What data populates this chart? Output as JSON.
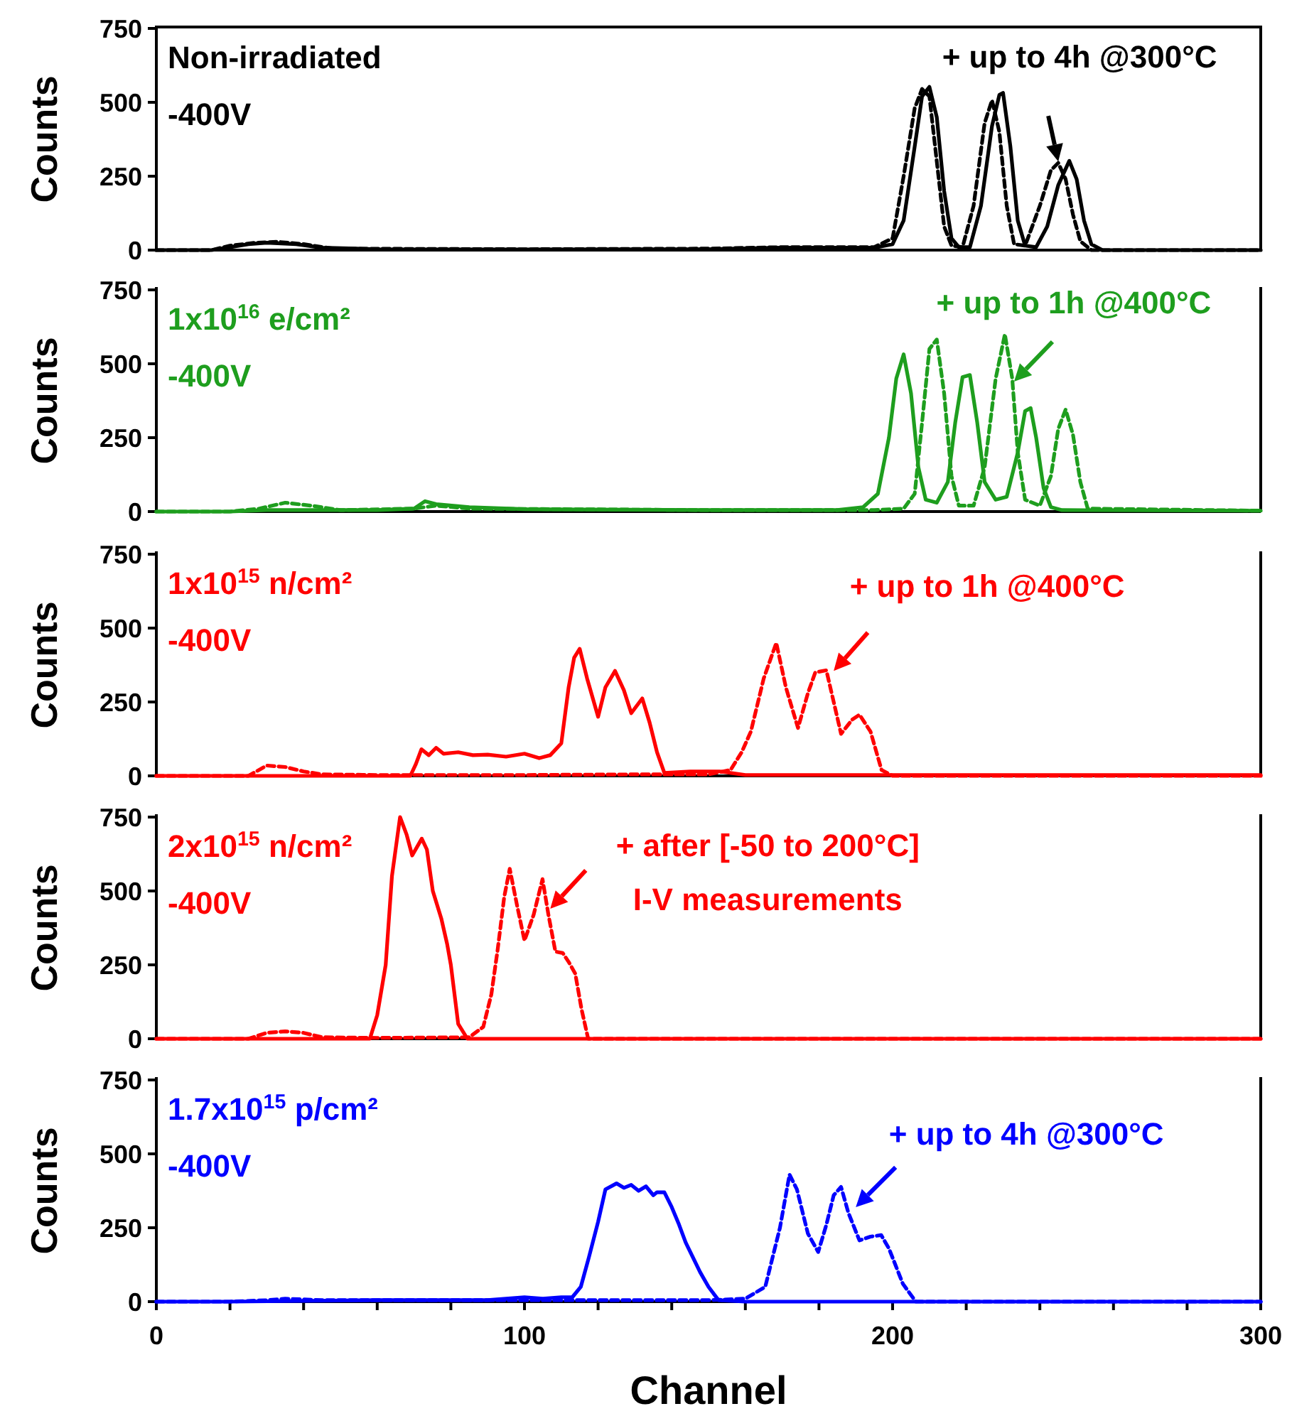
{
  "chart_data": [
    {
      "type": "line",
      "xlim": [
        0,
        300
      ],
      "ylim": [
        0,
        750
      ],
      "yticks": [
        0,
        250,
        500,
        750
      ],
      "ylabel": "Counts",
      "tick_labels": "y",
      "annotations": [
        "Non-irradiated",
        "-400V",
        {
          "text": "+ up to 4h @300°C",
          "x": 245,
          "y": 300
        }
      ],
      "series": [
        {
          "color": "#000000",
          "line_style": "solid",
          "x": [
            0,
            15,
            20,
            25,
            30,
            38,
            45,
            60,
            100,
            150,
            170,
            195,
            200,
            203,
            206,
            208,
            210,
            212,
            214,
            216,
            218,
            221,
            224,
            227,
            229,
            230,
            232,
            234,
            236,
            239,
            242,
            245,
            248,
            250,
            252,
            254,
            257,
            300
          ],
          "values": [
            0,
            0,
            10,
            20,
            25,
            20,
            8,
            3,
            2,
            3,
            8,
            8,
            20,
            100,
            350,
            520,
            552,
            450,
            200,
            40,
            10,
            10,
            150,
            420,
            525,
            532,
            350,
            100,
            15,
            10,
            80,
            220,
            302,
            240,
            100,
            20,
            0,
            0
          ]
        },
        {
          "color": "#000000",
          "line_style": "dashed",
          "x": [
            0,
            15,
            20,
            27,
            33,
            40,
            48,
            100,
            150,
            170,
            195,
            200,
            203,
            206,
            208,
            210,
            212,
            214,
            216,
            219,
            222,
            225,
            227,
            229,
            231,
            233,
            236,
            240,
            243,
            245,
            247,
            249,
            251,
            254,
            300
          ],
          "values": [
            0,
            0,
            15,
            25,
            28,
            20,
            5,
            3,
            5,
            10,
            10,
            40,
            250,
            480,
            545,
            520,
            300,
            80,
            15,
            10,
            150,
            430,
            507,
            400,
            150,
            20,
            15,
            150,
            270,
            295,
            240,
            120,
            30,
            0,
            0
          ]
        }
      ]
    },
    {
      "type": "line",
      "xlim": [
        0,
        300
      ],
      "ylim": [
        0,
        750
      ],
      "yticks": [
        0,
        250,
        500,
        750
      ],
      "ylabel": "Counts",
      "tick_labels": "y",
      "annotations": [
        "1x10$^{16}$ e/cm²",
        "-400V",
        {
          "text": "+ up to 1h @400°C",
          "x": 233,
          "y": 440
        }
      ],
      "series": [
        {
          "color": "#1e9e1e",
          "line_style": "solid",
          "x": [
            0,
            20,
            30,
            60,
            70,
            73,
            76,
            85,
            100,
            150,
            185,
            192,
            196,
            199,
            201,
            203,
            205,
            207,
            209,
            212,
            215,
            217,
            219,
            221,
            223,
            225,
            228,
            231,
            234,
            236,
            237.5,
            239,
            241,
            243,
            246,
            300
          ],
          "values": [
            0,
            0,
            5,
            5,
            10,
            35,
            25,
            15,
            8,
            5,
            5,
            15,
            60,
            250,
            450,
            532,
            400,
            150,
            40,
            30,
            100,
            300,
            455,
            462,
            300,
            100,
            40,
            50,
            200,
            340,
            350,
            250,
            80,
            15,
            5,
            3
          ]
        },
        {
          "color": "#1e9e1e",
          "line_style": "dashed",
          "x": [
            0,
            20,
            28,
            35,
            42,
            50,
            70,
            76,
            85,
            150,
            195,
            203,
            206,
            208,
            210,
            212,
            214,
            216,
            218,
            222,
            225,
            228,
            230.5,
            232.5,
            234,
            236,
            240,
            243,
            245,
            247,
            249,
            251,
            253,
            300
          ],
          "values": [
            0,
            0,
            10,
            30,
            20,
            5,
            10,
            20,
            10,
            5,
            5,
            10,
            60,
            300,
            550,
            582,
            400,
            120,
            20,
            20,
            150,
            450,
            600,
            450,
            200,
            40,
            20,
            120,
            280,
            345,
            260,
            100,
            10,
            3
          ]
        }
      ]
    },
    {
      "type": "line",
      "xlim": [
        0,
        300
      ],
      "ylim": [
        0,
        750
      ],
      "yticks": [
        0,
        250,
        500,
        750
      ],
      "ylabel": "Counts",
      "tick_labels": "y",
      "annotations": [
        "1x10$^{15}$ n/cm²",
        "-400V",
        {
          "text": "+ up to 1h @400°C",
          "x": 184,
          "y": 355
        }
      ],
      "series": [
        {
          "color": "#ff0000",
          "line_style": "solid",
          "x": [
            0,
            69,
            70.5,
            72,
            74,
            76,
            78,
            82,
            86,
            90,
            95,
            100,
            104,
            107,
            110,
            112,
            113.5,
            115,
            117,
            120,
            122,
            124.6,
            127,
            129,
            132,
            134,
            136,
            138,
            145,
            153,
            160,
            300
          ],
          "values": [
            0,
            0,
            40,
            90,
            70,
            95,
            75,
            80,
            70,
            72,
            65,
            75,
            60,
            70,
            110,
            300,
            400,
            430,
            330,
            200,
            300,
            355,
            290,
            212,
            262,
            180,
            80,
            10,
            15,
            15,
            3,
            3
          ]
        },
        {
          "color": "#ff0000",
          "line_style": "dashed",
          "x": [
            0,
            25,
            30,
            35,
            40,
            45,
            60,
            100,
            130,
            150,
            156,
            159,
            161.5,
            165,
            168.4,
            171,
            174.3,
            177,
            179,
            182,
            184,
            186,
            189,
            191,
            194,
            197,
            200,
            300
          ],
          "values": [
            0,
            0,
            35,
            30,
            15,
            5,
            3,
            3,
            5,
            5,
            20,
            80,
            150,
            330,
            450,
            300,
            162,
            280,
            350,
            357,
            250,
            142,
            190,
            207,
            150,
            20,
            0,
            0
          ]
        }
      ]
    },
    {
      "type": "line",
      "xlim": [
        0,
        300
      ],
      "ylim": [
        0,
        750
      ],
      "yticks": [
        0,
        250,
        500,
        750
      ],
      "ylabel": "Counts",
      "tick_labels": "y",
      "annotations": [
        "2x10$^{15}$ n/cm²",
        "-400V",
        {
          "text": "+ after [-50 to 200°C]\nI-V measurements",
          "x": 107,
          "y": 440
        }
      ],
      "series": [
        {
          "color": "#ff0000",
          "line_style": "solid",
          "x": [
            0,
            58,
            60,
            62.3,
            64,
            66.2,
            68,
            69.5,
            72.1,
            73.5,
            75.1,
            77.4,
            79,
            80,
            82,
            84.5,
            300
          ],
          "values": [
            0,
            0,
            80,
            250,
            550,
            750,
            690,
            620,
            677,
            640,
            500,
            407,
            320,
            250,
            50,
            0,
            0
          ]
        },
        {
          "color": "#ff0000",
          "line_style": "dashed",
          "x": [
            0,
            25,
            30,
            35,
            40,
            45,
            60,
            85,
            88.8,
            91,
            92.7,
            94.5,
            96,
            98,
            100,
            102.5,
            104.9,
            106.5,
            108.4,
            110.4,
            112,
            113.8,
            115.5,
            117.3,
            300
          ],
          "values": [
            0,
            0,
            20,
            25,
            20,
            5,
            3,
            5,
            40,
            150,
            300,
            480,
            575,
            450,
            332,
            420,
            540,
            420,
            295,
            290,
            260,
            220,
            100,
            0,
            0
          ]
        }
      ]
    },
    {
      "type": "line",
      "xlim": [
        0,
        300
      ],
      "ylim": [
        0,
        750
      ],
      "yticks": [
        0,
        250,
        500,
        750
      ],
      "ylabel": "Counts",
      "xlabel": "Channel",
      "xticks": [
        0,
        {
          "value": 20,
          "label": null
        },
        {
          "value": 40,
          "label": null
        },
        {
          "value": 60,
          "label": null
        },
        {
          "value": 80,
          "label": null
        },
        100,
        {
          "value": 120,
          "label": null
        },
        {
          "value": 140,
          "label": null
        },
        {
          "value": 160,
          "label": null
        },
        {
          "value": 180,
          "label": null
        },
        200,
        {
          "value": 220,
          "label": null
        },
        {
          "value": 240,
          "label": null
        },
        {
          "value": 260,
          "label": null
        },
        {
          "value": 280,
          "label": null
        },
        300
      ],
      "annotations": [
        "1.7x10$^{15}$ p/cm²",
        "-400V",
        {
          "text": "+ up to 4h @300°C",
          "x": 190,
          "y": 320
        }
      ],
      "series": [
        {
          "color": "#0000ff",
          "line_style": "solid",
          "x": [
            0,
            20,
            60,
            90,
            100,
            105,
            110,
            113,
            115.3,
            117.5,
            120,
            122,
            125,
            127,
            129,
            131,
            133,
            135,
            136,
            138,
            140,
            142,
            143.8,
            147.7,
            150,
            152.7,
            160,
            300
          ],
          "values": [
            0,
            0,
            5,
            5,
            15,
            10,
            15,
            15,
            50,
            150,
            270,
            380,
            400,
            385,
            395,
            375,
            390,
            360,
            370,
            370,
            320,
            260,
            200,
            100,
            50,
            5,
            0,
            0
          ]
        },
        {
          "color": "#0000ff",
          "line_style": "dashed",
          "x": [
            0,
            20,
            30,
            35,
            45,
            60,
            100,
            130,
            150,
            160,
            165.4,
            169.4,
            172,
            174,
            177,
            179.8,
            182,
            184,
            186,
            188,
            191,
            194,
            196.9,
            199,
            202.8,
            206.3,
            300
          ],
          "values": [
            0,
            0,
            5,
            10,
            5,
            5,
            5,
            5,
            5,
            10,
            50,
            250,
            430,
            380,
            230,
            168,
            260,
            360,
            388,
            300,
            207,
            220,
            225,
            180,
            60,
            0,
            0
          ]
        }
      ]
    }
  ]
}
